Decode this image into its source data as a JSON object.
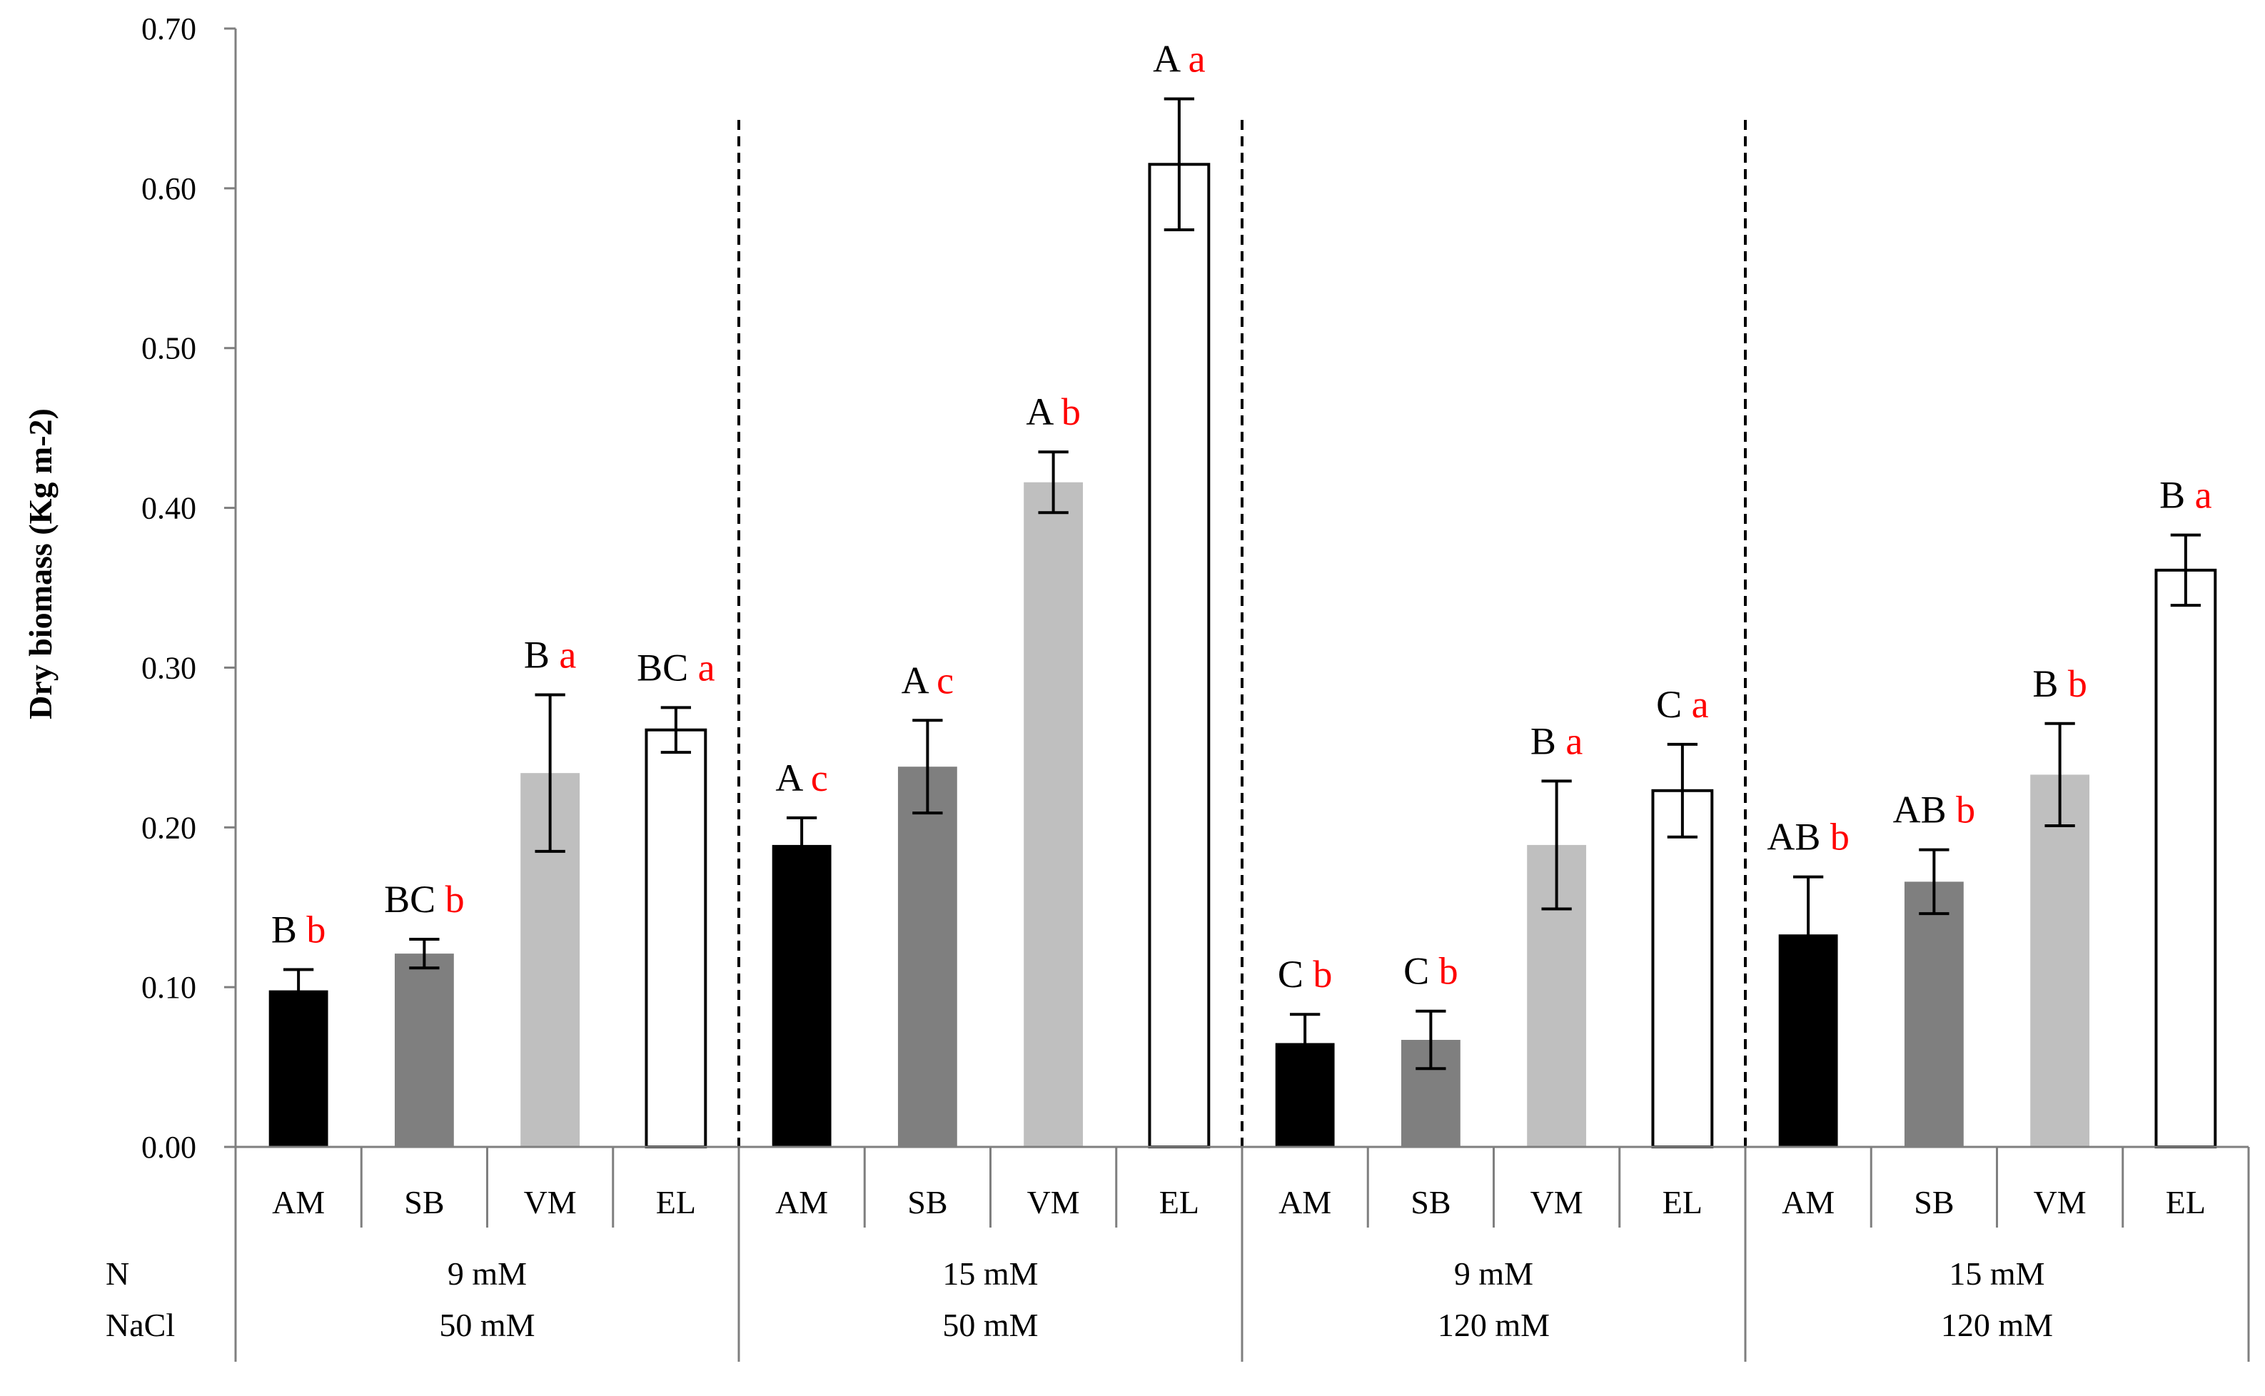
{
  "chart_data": {
    "type": "bar",
    "title": "",
    "ylabel": "Dry biomass (Kg m-2)",
    "xlabel": "",
    "ylim": [
      0,
      0.7
    ],
    "yticks": [
      "0.00",
      "0.10",
      "0.20",
      "0.30",
      "0.40",
      "0.50",
      "0.60",
      "0.70"
    ],
    "row_labels": {
      "n": "N",
      "nacl": "NaCl"
    },
    "colors": {
      "AM": "#000000",
      "SB": "#7f7f7f",
      "VM": "#bfbfbf",
      "EL": "#ffffff",
      "letter_upper": "#000000",
      "letter_lower": "#ff0000",
      "axis": "#7f7f7f"
    },
    "groups": [
      {
        "n": "9 mM",
        "nacl": "50 mM",
        "bars": [
          {
            "category": "AM",
            "value": 0.098,
            "error": 0.013,
            "letter_upper": "B",
            "letter_lower": "b"
          },
          {
            "category": "SB",
            "value": 0.121,
            "error": 0.009,
            "letter_upper": "BC",
            "letter_lower": "b"
          },
          {
            "category": "VM",
            "value": 0.234,
            "error": 0.049,
            "letter_upper": "B",
            "letter_lower": "a"
          },
          {
            "category": "EL",
            "value": 0.261,
            "error": 0.014,
            "letter_upper": "BC",
            "letter_lower": "a"
          }
        ]
      },
      {
        "n": "15 mM",
        "nacl": "50 mM",
        "bars": [
          {
            "category": "AM",
            "value": 0.189,
            "error": 0.017,
            "letter_upper": "A",
            "letter_lower": "c"
          },
          {
            "category": "SB",
            "value": 0.238,
            "error": 0.029,
            "letter_upper": "A",
            "letter_lower": "c"
          },
          {
            "category": "VM",
            "value": 0.416,
            "error": 0.019,
            "letter_upper": "A",
            "letter_lower": "b"
          },
          {
            "category": "EL",
            "value": 0.615,
            "error": 0.041,
            "letter_upper": "A",
            "letter_lower": "a"
          }
        ]
      },
      {
        "n": "9 mM",
        "nacl": "120 mM",
        "bars": [
          {
            "category": "AM",
            "value": 0.065,
            "error": 0.018,
            "letter_upper": "C",
            "letter_lower": "b"
          },
          {
            "category": "SB",
            "value": 0.067,
            "error": 0.018,
            "letter_upper": "C",
            "letter_lower": "b"
          },
          {
            "category": "VM",
            "value": 0.189,
            "error": 0.04,
            "letter_upper": "B",
            "letter_lower": "a"
          },
          {
            "category": "EL",
            "value": 0.223,
            "error": 0.029,
            "letter_upper": "C",
            "letter_lower": "a"
          }
        ]
      },
      {
        "n": "15 mM",
        "nacl": "120 mM",
        "bars": [
          {
            "category": "AM",
            "value": 0.133,
            "error": 0.036,
            "letter_upper": "AB",
            "letter_lower": "b"
          },
          {
            "category": "SB",
            "value": 0.166,
            "error": 0.02,
            "letter_upper": "AB",
            "letter_lower": "b"
          },
          {
            "category": "VM",
            "value": 0.233,
            "error": 0.032,
            "letter_upper": "B",
            "letter_lower": "b"
          },
          {
            "category": "EL",
            "value": 0.361,
            "error": 0.022,
            "letter_upper": "B",
            "letter_lower": "a"
          }
        ]
      }
    ]
  }
}
